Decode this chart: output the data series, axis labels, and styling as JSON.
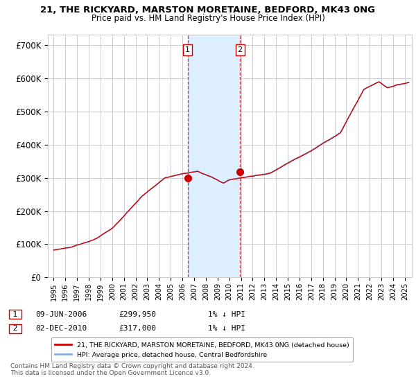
{
  "title": "21, THE RICKYARD, MARSTON MORETAINE, BEDFORD, MK43 0NG",
  "subtitle": "Price paid vs. HM Land Registry's House Price Index (HPI)",
  "ylabel_ticks": [
    "£0",
    "£100K",
    "£200K",
    "£300K",
    "£400K",
    "£500K",
    "£600K",
    "£700K"
  ],
  "ytick_values": [
    0,
    100000,
    200000,
    300000,
    400000,
    500000,
    600000,
    700000
  ],
  "ylim": [
    0,
    730000
  ],
  "xlim_left": 1994.5,
  "xlim_right": 2025.6,
  "transaction1_date": 2006.44,
  "transaction1_price": 299950,
  "transaction1_label": "1",
  "transaction2_date": 2010.92,
  "transaction2_price": 317000,
  "transaction2_label": "2",
  "legend_entry1": "21, THE RICKYARD, MARSTON MORETAINE, BEDFORD, MK43 0NG (detached house)",
  "legend_entry2": "HPI: Average price, detached house, Central Bedfordshire",
  "ann1_num": "1",
  "ann1_date": "09-JUN-2006",
  "ann1_price": "£299,950",
  "ann1_hpi": "1% ↓ HPI",
  "ann2_num": "2",
  "ann2_date": "02-DEC-2010",
  "ann2_price": "£317,000",
  "ann2_hpi": "1% ↓ HPI",
  "footer": "Contains HM Land Registry data © Crown copyright and database right 2024.\nThis data is licensed under the Open Government Licence v3.0.",
  "line_color_red": "#cc0000",
  "line_color_blue": "#88aadd",
  "shade_color": "#ddeeff",
  "grid_color": "#cccccc",
  "bg_color": "#ffffff",
  "label_box_color": "#cc0000"
}
